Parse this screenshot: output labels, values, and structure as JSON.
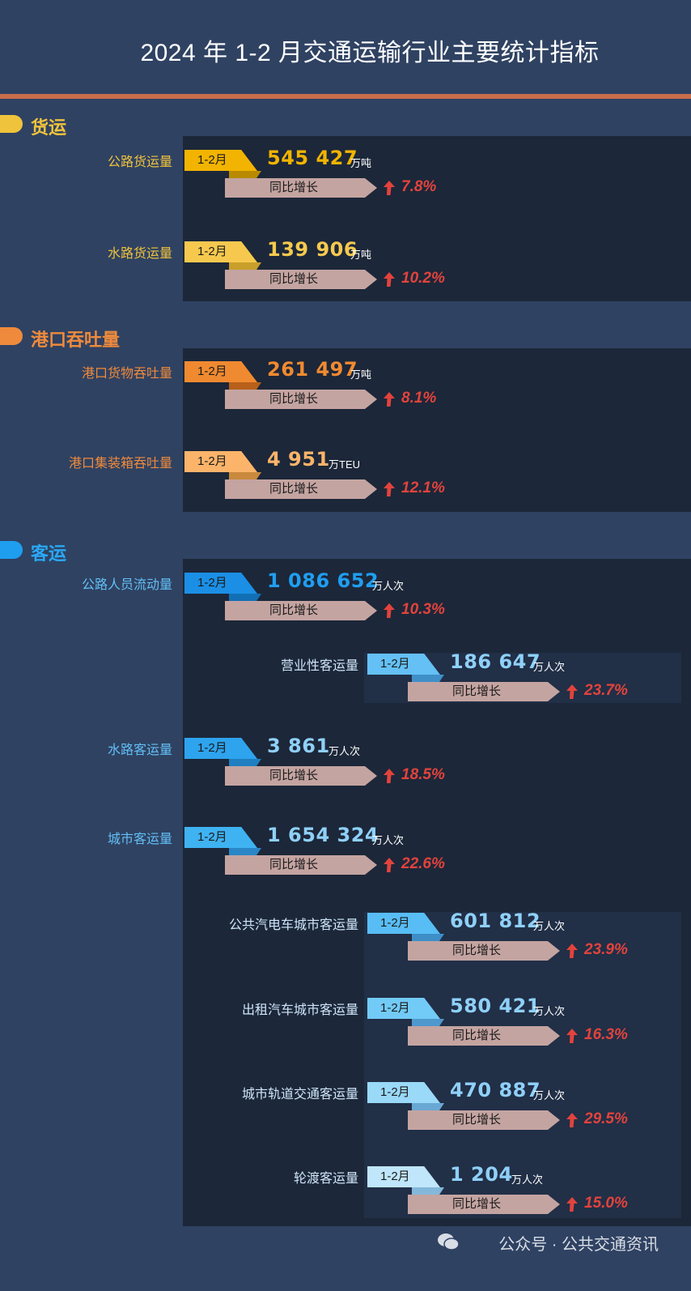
{
  "title": "2024 年 1-2 月交通运输行业主要统计指标",
  "colors": {
    "background": "#2f4262",
    "panel": "#1c2739",
    "freight": "#f0c33c",
    "port": "#ef8a3c",
    "passenger": "#1f9ef0",
    "growth": "#e2433c",
    "title_rule": "#c86d4c"
  },
  "common": {
    "period_tag": "1-2月",
    "growth_label": "同比增长"
  },
  "sections": [
    {
      "name": "货运",
      "items": [
        {
          "label": "公路货运量",
          "value": "545 427",
          "unit": "万吨",
          "growth": "7.8%"
        },
        {
          "label": "水路货运量",
          "value": "139 906",
          "unit": "万吨",
          "growth": "10.2%"
        }
      ]
    },
    {
      "name": "港口吞吐量",
      "items": [
        {
          "label": "港口货物吞吐量",
          "value": "261 497",
          "unit": "万吨",
          "growth": "8.1%"
        },
        {
          "label": "港口集装箱吞吐量",
          "value": "4 951",
          "unit": "万TEU",
          "growth": "12.1%"
        }
      ]
    },
    {
      "name": "客运",
      "items": [
        {
          "label": "公路人员流动量",
          "value": "1 086 652",
          "unit": "万人次",
          "growth": "10.3%"
        },
        {
          "label": "营业性客运量",
          "value": "186 647",
          "unit": "万人次",
          "growth": "23.7%"
        },
        {
          "label": "水路客运量",
          "value": "3 861",
          "unit": "万人次",
          "growth": "18.5%"
        },
        {
          "label": "城市客运量",
          "value": "1 654 324",
          "unit": "万人次",
          "growth": "22.6%"
        },
        {
          "label": "公共汽电车城市客运量",
          "value": "601 812",
          "unit": "万人次",
          "growth": "23.9%"
        },
        {
          "label": "出租汽车城市客运量",
          "value": "580 421",
          "unit": "万人次",
          "growth": "16.3%"
        },
        {
          "label": "城市轨道交通客运量",
          "value": "470 887",
          "unit": "万人次",
          "growth": "29.5%"
        },
        {
          "label": "轮渡客运量",
          "value": "1 204",
          "unit": "万人次",
          "growth": "15.0%"
        }
      ]
    }
  ],
  "watermark": "公众号 · 公共交通资讯",
  "icons": {
    "growth": "up-arrow-icon",
    "watermark": "wechat-icon"
  }
}
